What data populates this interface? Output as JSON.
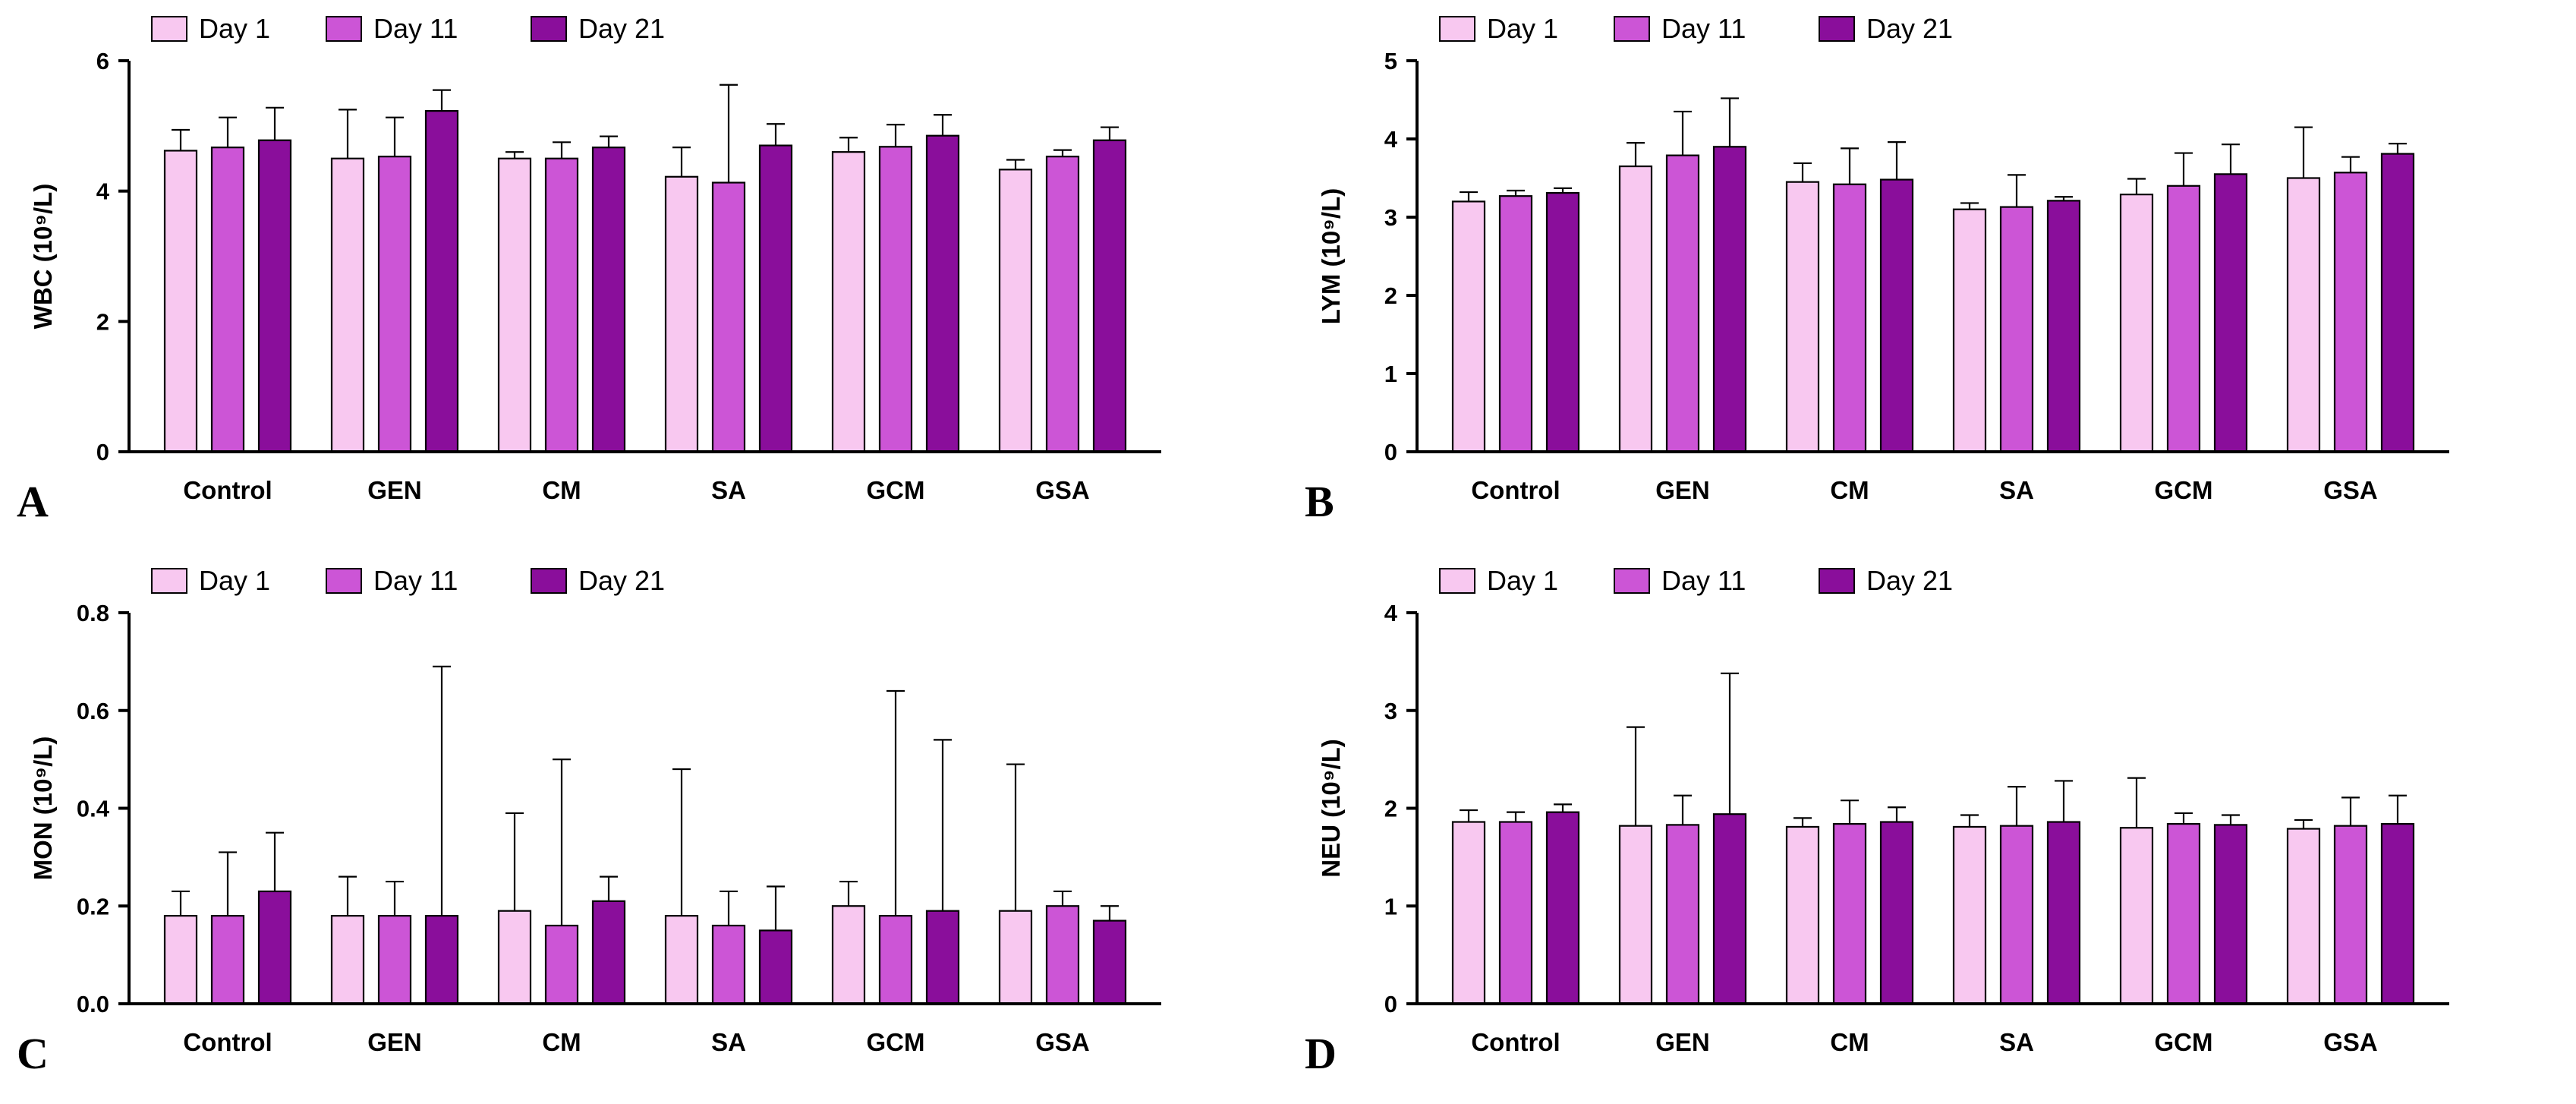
{
  "figure": {
    "colors": {
      "day1": "#F8C8F0",
      "day11": "#CC55D6",
      "day21": "#8A0E9B",
      "axis": "#000000"
    }
  },
  "chart_data": [
    {
      "type": "bar",
      "panel_label": "A",
      "ylabel": "WBC (10⁹/L)",
      "xlabel": "",
      "ylim": [
        0,
        6
      ],
      "yticks": [
        "0",
        "2",
        "4",
        "6"
      ],
      "categories": [
        "Control",
        "GEN",
        "CM",
        "SA",
        "GCM",
        "GSA"
      ],
      "legend": [
        "Day 1",
        "Day 11",
        "Day 21"
      ],
      "series": [
        {
          "name": "Day 1",
          "values": [
            4.62,
            4.5,
            4.5,
            4.22,
            4.6,
            4.33
          ],
          "errors": [
            0.32,
            0.75,
            0.1,
            0.45,
            0.22,
            0.15
          ]
        },
        {
          "name": "Day 11",
          "values": [
            4.67,
            4.53,
            4.5,
            4.13,
            4.68,
            4.53
          ],
          "errors": [
            0.46,
            0.6,
            0.25,
            1.5,
            0.34,
            0.1
          ]
        },
        {
          "name": "Day 21",
          "values": [
            4.78,
            5.23,
            4.67,
            4.7,
            4.85,
            4.78
          ],
          "errors": [
            0.5,
            0.32,
            0.17,
            0.33,
            0.32,
            0.2
          ]
        }
      ]
    },
    {
      "type": "bar",
      "panel_label": "B",
      "ylabel": "LYM (10⁹/L)",
      "xlabel": "",
      "ylim": [
        0,
        5
      ],
      "yticks": [
        "0",
        "1",
        "2",
        "3",
        "4",
        "5"
      ],
      "categories": [
        "Control",
        "GEN",
        "CM",
        "SA",
        "GCM",
        "GSA"
      ],
      "legend": [
        "Day 1",
        "Day 11",
        "Day 21"
      ],
      "series": [
        {
          "name": "Day 1",
          "values": [
            3.2,
            3.65,
            3.45,
            3.1,
            3.29,
            3.5
          ],
          "errors": [
            0.12,
            0.3,
            0.24,
            0.08,
            0.2,
            0.65
          ]
        },
        {
          "name": "Day 11",
          "values": [
            3.27,
            3.79,
            3.42,
            3.13,
            3.4,
            3.57
          ],
          "errors": [
            0.07,
            0.56,
            0.46,
            0.41,
            0.42,
            0.2
          ]
        },
        {
          "name": "Day 21",
          "values": [
            3.31,
            3.9,
            3.48,
            3.21,
            3.55,
            3.81
          ],
          "errors": [
            0.06,
            0.62,
            0.48,
            0.05,
            0.38,
            0.13
          ]
        }
      ]
    },
    {
      "type": "bar",
      "panel_label": "C",
      "ylabel": "MON (10⁹/L)",
      "xlabel": "",
      "ylim": [
        0,
        0.8
      ],
      "yticks": [
        "0.0",
        "0.2",
        "0.4",
        "0.6",
        "0.8"
      ],
      "categories": [
        "Control",
        "GEN",
        "CM",
        "SA",
        "GCM",
        "GSA"
      ],
      "legend": [
        "Day 1",
        "Day 11",
        "Day 21"
      ],
      "series": [
        {
          "name": "Day 1",
          "values": [
            0.18,
            0.18,
            0.19,
            0.18,
            0.2,
            0.19
          ],
          "errors": [
            0.05,
            0.08,
            0.2,
            0.3,
            0.05,
            0.3
          ]
        },
        {
          "name": "Day 11",
          "values": [
            0.18,
            0.18,
            0.16,
            0.16,
            0.18,
            0.2
          ],
          "errors": [
            0.13,
            0.07,
            0.34,
            0.07,
            0.46,
            0.03
          ]
        },
        {
          "name": "Day 21",
          "values": [
            0.23,
            0.18,
            0.21,
            0.15,
            0.19,
            0.17
          ],
          "errors": [
            0.12,
            0.51,
            0.05,
            0.09,
            0.35,
            0.03
          ]
        }
      ]
    },
    {
      "type": "bar",
      "panel_label": "D",
      "ylabel": "NEU (10⁹/L)",
      "xlabel": "",
      "ylim": [
        0,
        4
      ],
      "yticks": [
        "0",
        "1",
        "2",
        "3",
        "4"
      ],
      "categories": [
        "Control",
        "GEN",
        "CM",
        "SA",
        "GCM",
        "GSA"
      ],
      "legend": [
        "Day 1",
        "Day 11",
        "Day 21"
      ],
      "series": [
        {
          "name": "Day 1",
          "values": [
            1.86,
            1.82,
            1.81,
            1.81,
            1.8,
            1.79
          ],
          "errors": [
            0.12,
            1.01,
            0.09,
            0.12,
            0.51,
            0.09
          ]
        },
        {
          "name": "Day 11",
          "values": [
            1.86,
            1.83,
            1.84,
            1.82,
            1.84,
            1.82
          ],
          "errors": [
            0.1,
            0.3,
            0.24,
            0.4,
            0.11,
            0.29
          ]
        },
        {
          "name": "Day 21",
          "values": [
            1.96,
            1.94,
            1.86,
            1.86,
            1.83,
            1.84
          ],
          "errors": [
            0.08,
            1.44,
            0.15,
            0.42,
            0.1,
            0.29
          ]
        }
      ]
    }
  ]
}
